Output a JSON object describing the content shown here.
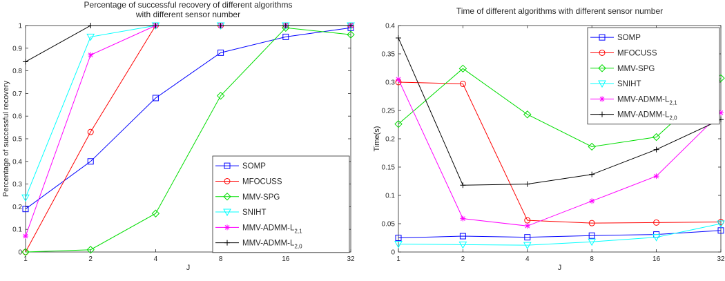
{
  "chart_data": [
    {
      "type": "line",
      "title": [
        "Percentage of successful recovery of different algorithms",
        "with different sensor number"
      ],
      "xlabel": "J",
      "ylabel": "Percentage of successful recovery",
      "categories": [
        "1",
        "2",
        "4",
        "8",
        "16",
        "32"
      ],
      "ylim": [
        0,
        1
      ],
      "yticks": [
        "0",
        "0.1",
        "0.2",
        "0.3",
        "0.4",
        "0.5",
        "0.6",
        "0.7",
        "0.8",
        "0.9",
        "1"
      ],
      "legend_position": "bottom-right",
      "grid": false,
      "series": [
        {
          "name": "SOMP",
          "color": "#0000ff",
          "marker": "square",
          "values": [
            0.19,
            0.4,
            0.68,
            0.88,
            0.95,
            0.99
          ]
        },
        {
          "name": "MFOCUSS",
          "color": "#ff0000",
          "marker": "circle",
          "values": [
            0.0,
            0.53,
            1.0,
            1.0,
            1.0,
            1.0
          ]
        },
        {
          "name": "MMV-SPG",
          "color": "#00dd00",
          "marker": "diamond",
          "values": [
            0.0,
            0.01,
            0.17,
            0.69,
            0.99,
            0.96
          ]
        },
        {
          "name": "SNIHT",
          "color": "#00ffff",
          "marker": "triangle-down",
          "values": [
            0.24,
            0.95,
            1.0,
            1.0,
            1.0,
            1.0
          ]
        },
        {
          "name": "MMV-ADMM-L",
          "name_sub": "2,1",
          "color": "#ff00ff",
          "marker": "star",
          "values": [
            0.07,
            0.87,
            1.0,
            1.0,
            1.0,
            1.0
          ]
        },
        {
          "name": "MMV-ADMM-L",
          "name_sub": "2,0",
          "color": "#000000",
          "marker": "plus",
          "values": [
            0.84,
            1.0,
            1.0,
            1.0,
            1.0,
            1.0
          ]
        }
      ]
    },
    {
      "type": "line",
      "title": [
        "Time of different algorithms with different sensor number"
      ],
      "xlabel": "J",
      "ylabel": "Time(s)",
      "categories": [
        "1",
        "2",
        "4",
        "8",
        "16",
        "32"
      ],
      "ylim": [
        0,
        0.4
      ],
      "yticks": [
        "0",
        "0.05",
        "0.1",
        "0.15",
        "0.2",
        "0.25",
        "0.3",
        "0.35",
        "0.4"
      ],
      "legend_position": "top-right",
      "grid": false,
      "series": [
        {
          "name": "SOMP",
          "color": "#0000ff",
          "marker": "square",
          "values": [
            0.025,
            0.028,
            0.026,
            0.029,
            0.031,
            0.038
          ]
        },
        {
          "name": "MFOCUSS",
          "color": "#ff0000",
          "marker": "circle",
          "values": [
            0.3,
            0.297,
            0.056,
            0.051,
            0.052,
            0.053
          ]
        },
        {
          "name": "MMV-SPG",
          "color": "#00dd00",
          "marker": "diamond",
          "values": [
            0.226,
            0.324,
            0.243,
            0.186,
            0.203,
            0.307
          ]
        },
        {
          "name": "SNIHT",
          "color": "#00ffff",
          "marker": "triangle-down",
          "values": [
            0.014,
            0.013,
            0.012,
            0.018,
            0.026,
            0.05
          ]
        },
        {
          "name": "MMV-ADMM-L",
          "name_sub": "2,1",
          "color": "#ff00ff",
          "marker": "star",
          "values": [
            0.305,
            0.059,
            0.046,
            0.09,
            0.134,
            0.246
          ]
        },
        {
          "name": "MMV-ADMM-L",
          "name_sub": "2,0",
          "color": "#000000",
          "marker": "plus",
          "values": [
            0.378,
            0.118,
            0.12,
            0.137,
            0.181,
            0.234
          ]
        }
      ]
    }
  ]
}
